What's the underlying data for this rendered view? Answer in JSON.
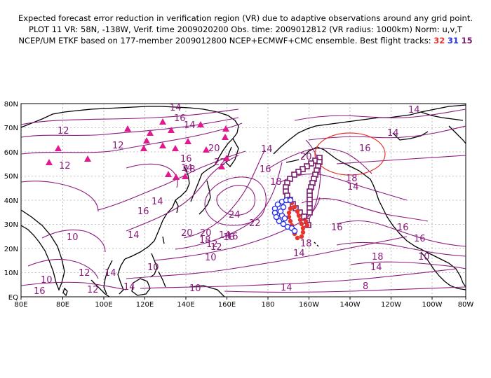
{
  "header": {
    "line1": "Expected forecast error reduction in verification region (VR) due to adaptive observations around any grid point.",
    "line2": "PLOT 11 VR: 58N, -138W, Verif. time 2009020200 Obs. time: 2009012812 (VR radius: 1000km) Norm: u,v,T",
    "line3_prefix": "NCEP/UM ETKF based on 177-member 2009012800 NCEP+ECMWF+CMC ensemble. Best flight tracks:",
    "track1": "32",
    "track2": "31",
    "track3": "15"
  },
  "map": {
    "lon_labels": [
      "80E",
      "80E",
      "100E",
      "120E",
      "140E",
      "160E",
      "180",
      "160W",
      "140W",
      "120W",
      "100W",
      "80W"
    ],
    "lat_labels": [
      "EQ",
      "10N",
      "20N",
      "30N",
      "40N",
      "50N",
      "60N",
      "70N",
      "80N"
    ],
    "contour_labels": [
      {
        "text": "14"
      },
      {
        "text": "16"
      },
      {
        "text": "12"
      },
      {
        "text": "14"
      },
      {
        "text": "12"
      },
      {
        "text": "12"
      },
      {
        "text": "16"
      },
      {
        "text": "14"
      },
      {
        "text": "20"
      },
      {
        "text": "22"
      },
      {
        "text": "18"
      },
      {
        "text": "14"
      },
      {
        "text": "16"
      },
      {
        "text": "18"
      },
      {
        "text": "14"
      },
      {
        "text": "16"
      },
      {
        "text": "14"
      },
      {
        "text": "20"
      },
      {
        "text": "16"
      },
      {
        "text": "10"
      },
      {
        "text": "14"
      },
      {
        "text": "24"
      },
      {
        "text": "22"
      },
      {
        "text": "20"
      },
      {
        "text": "18"
      },
      {
        "text": "16"
      },
      {
        "text": "12"
      },
      {
        "text": "10"
      },
      {
        "text": "10"
      },
      {
        "text": "12"
      },
      {
        "text": "14"
      },
      {
        "text": "16"
      },
      {
        "text": "14"
      },
      {
        "text": "14"
      },
      {
        "text": "16"
      },
      {
        "text": "16"
      },
      {
        "text": "14"
      },
      {
        "text": "18"
      },
      {
        "text": "16"
      },
      {
        "text": "18"
      },
      {
        "text": "14"
      },
      {
        "text": "14"
      },
      {
        "text": "10"
      },
      {
        "text": "10"
      },
      {
        "text": "12"
      },
      {
        "text": "14"
      },
      {
        "text": "16"
      },
      {
        "text": "18"
      },
      {
        "text": "14"
      },
      {
        "text": "12"
      },
      {
        "text": "10"
      },
      {
        "text": "8"
      },
      {
        "text": "20"
      }
    ]
  },
  "colors": {
    "contour": "#8b1a7e",
    "track_red": "#e8342c",
    "track_blue": "#2a34e6",
    "track_purple": "#7a1a6e",
    "triangle": "#e0198f",
    "verification_circle": "#e8342c"
  }
}
